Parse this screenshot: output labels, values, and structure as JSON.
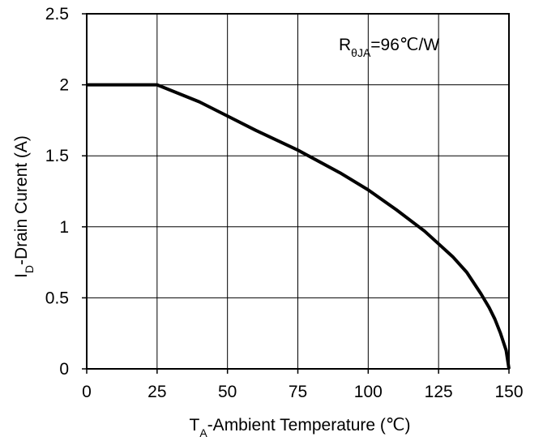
{
  "chart_data": {
    "type": "line",
    "title": "",
    "xlabel": {
      "main": "T",
      "sub": "A",
      "rest": "-Ambient  Temperature (℃)"
    },
    "ylabel": {
      "main": "I",
      "sub": "D",
      "rest": "-Drain Curent (A)"
    },
    "annotation": {
      "main": "R",
      "sub": "θJA",
      "rest": "=96℃/W"
    },
    "xlim": [
      0,
      150
    ],
    "ylim": [
      0,
      2.5
    ],
    "x_ticks": [
      0,
      25,
      50,
      75,
      100,
      125,
      150
    ],
    "y_ticks": [
      0,
      0.5,
      1,
      1.5,
      2,
      2.5
    ],
    "x_tick_labels": [
      "0",
      "25",
      "50",
      "75",
      "100",
      "125",
      "150"
    ],
    "y_tick_labels": [
      "0",
      "0.5",
      "1",
      "1.5",
      "2",
      "2.5"
    ],
    "grid": true,
    "series": [
      {
        "color": "#000000",
        "x": [
          0,
          25,
          40,
          50,
          60,
          75,
          90,
          100,
          110,
          120,
          125,
          130,
          135,
          140,
          143,
          145,
          147,
          148,
          149,
          150
        ],
        "y": [
          2.0,
          2.0,
          1.88,
          1.78,
          1.68,
          1.54,
          1.38,
          1.26,
          1.12,
          0.97,
          0.88,
          0.79,
          0.68,
          0.53,
          0.43,
          0.35,
          0.25,
          0.19,
          0.13,
          0.0
        ]
      }
    ]
  }
}
